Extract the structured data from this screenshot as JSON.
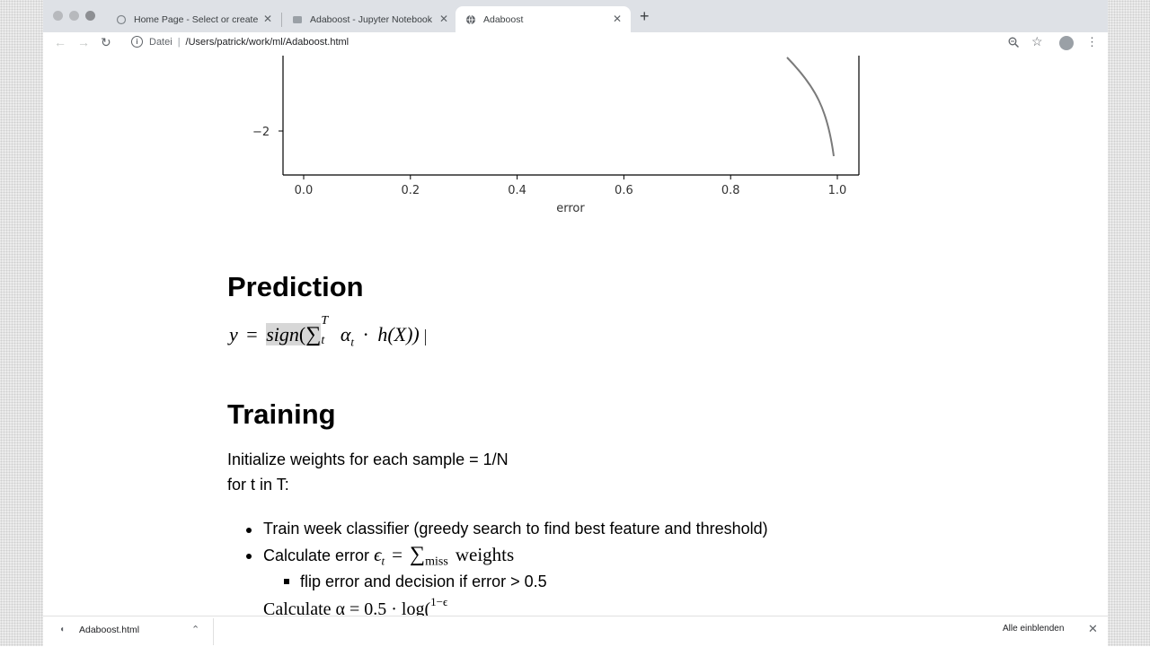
{
  "browser": {
    "tabs": [
      {
        "title": "Home Page - Select or create",
        "close": "✕"
      },
      {
        "title": "Adaboost - Jupyter Notebook",
        "close": "✕"
      },
      {
        "title": "Adaboost",
        "close": "✕"
      }
    ],
    "new_tab": "+",
    "address": {
      "scheme": "Datei",
      "path": "/Users/patrick/work/ml/Adaboost.html"
    },
    "icons": [
      "back-icon",
      "forward-icon",
      "reload-icon",
      "info-icon",
      "zoom-icon",
      "star-icon",
      "avatar-icon",
      "menu-icon"
    ]
  },
  "plot": {
    "ytick": "−2",
    "xticks": [
      "0.0",
      "0.2",
      "0.4",
      "0.6",
      "0.8",
      "1.0"
    ],
    "xlabel": "error"
  },
  "prediction": {
    "heading": "Prediction",
    "formula_y": "y",
    "formula_eq": "=",
    "formula_sign": "sign",
    "formula_open": "(",
    "formula_sum": "∑",
    "formula_sum_sup": "T",
    "formula_sum_sub": "t",
    "formula_alpha": "α",
    "formula_alpha_sub": "t",
    "formula_dot": "·",
    "formula_h": "h",
    "formula_arg": "(X))"
  },
  "training": {
    "heading": "Training",
    "line1": "Initialize weights for each sample = 1/N",
    "line2": "for t in T:",
    "item1": "Train week classifier (greedy search to find best feature and threshold)",
    "item2_prefix": "Calculate error",
    "item2_eps": "ϵ",
    "item2_eps_sub": "t",
    "item2_eq": "=",
    "item2_sum": "∑",
    "item2_sum_sub": "miss",
    "item2_suffix": "weights",
    "subitem1": "flip error and decision if error > 0.5",
    "item3_partial": "Calculate α  = 0.5 · log(",
    "item3_frac": "1−ϵ"
  },
  "downloads": {
    "file": "Adaboost.html",
    "show_all": "Alle einblenden",
    "close": "✕"
  }
}
